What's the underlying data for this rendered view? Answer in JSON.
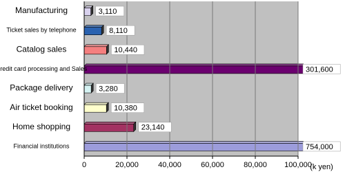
{
  "chart_data": {
    "type": "bar",
    "orientation": "horizontal",
    "categories": [
      "Manufacturing",
      "Ticket sales by telephone",
      "Catalog sales",
      "Credit card processing and Sales",
      "Package delivery",
      "Air ticket booking",
      "Home shopping",
      "Financial institutions"
    ],
    "values": [
      3110,
      8110,
      10440,
      301600,
      3280,
      10380,
      23140,
      754000
    ],
    "value_labels": [
      "3,110",
      "8,110",
      "10,440",
      "301,600",
      "3,280",
      "10,380",
      "23,140",
      "754,000"
    ],
    "colors": [
      "#d9d2ee",
      "#2a62b0",
      "#f47f7f",
      "#6b006f",
      "#d6f3f3",
      "#ffffcc",
      "#a33262",
      "#9c9cdb"
    ],
    "xlim": [
      0,
      100000
    ],
    "xticks": [
      0,
      {
        "value": 20000,
        "label": "20,000"
      },
      {
        "value": 40000,
        "label": "40,000"
      },
      {
        "value": 60000,
        "label": "60,000"
      },
      {
        "value": 80000,
        "label": "80,000"
      },
      {
        "value": 100000,
        "label": "100,000"
      }
    ],
    "x_unit_label": "(k yen)",
    "grid": true
  }
}
